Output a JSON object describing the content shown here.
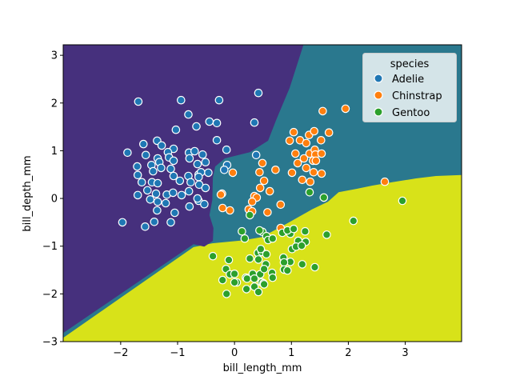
{
  "figure": {
    "background_color": "#ffffff",
    "frame_color": "#000000"
  },
  "chart_data": {
    "type": "scatter",
    "subtype": "scatter-with-decision-regions",
    "title": "",
    "xlabel": "bill_length_mm",
    "ylabel": "bill_depth_mm",
    "xlim": [
      -3.01,
      3.99
    ],
    "ylim": [
      -3.0,
      3.22
    ],
    "grid": false,
    "x_ticks": [
      {
        "value": -2,
        "label": "−2"
      },
      {
        "value": -1,
        "label": "−1"
      },
      {
        "value": 0,
        "label": "0"
      },
      {
        "value": 1,
        "label": "1"
      },
      {
        "value": 2,
        "label": "2"
      },
      {
        "value": 3,
        "label": "3"
      }
    ],
    "y_ticks": [
      {
        "value": 3,
        "label": "3"
      },
      {
        "value": 2,
        "label": "2"
      },
      {
        "value": 1,
        "label": "1"
      },
      {
        "value": 0,
        "label": "0"
      },
      {
        "value": -1,
        "label": "−1"
      },
      {
        "value": -2,
        "label": "−2"
      },
      {
        "value": -3,
        "label": "−3"
      }
    ],
    "legend": {
      "title": "species",
      "position": "upper right"
    },
    "marker": {
      "radius": 4.7,
      "edge_color": "#ffffff"
    },
    "series": [
      {
        "name": "Adelie",
        "color": "#1f77b4",
        "points": [
          [
            -1.69,
            2.03
          ],
          [
            -0.94,
            2.06
          ],
          [
            -0.27,
            2.06
          ],
          [
            -0.81,
            1.76
          ],
          [
            -0.67,
            1.51
          ],
          [
            -0.44,
            1.61
          ],
          [
            -0.31,
            1.58
          ],
          [
            -1.03,
            1.44
          ],
          [
            0.42,
            2.21
          ],
          [
            0.35,
            1.59
          ],
          [
            -1.6,
            1.14
          ],
          [
            -1.36,
            1.21
          ],
          [
            -1.28,
            1.11
          ],
          [
            -0.31,
            1.22
          ],
          [
            -1.88,
            0.96
          ],
          [
            -1.56,
            0.91
          ],
          [
            -1.07,
            1.04
          ],
          [
            -1.17,
            0.97
          ],
          [
            -1.15,
            0.86
          ],
          [
            -0.8,
            0.96
          ],
          [
            -0.7,
            0.99
          ],
          [
            -0.56,
            0.92
          ],
          [
            -0.65,
            0.72
          ],
          [
            -0.79,
            0.84
          ],
          [
            -1.07,
            0.79
          ],
          [
            -1.35,
            0.84
          ],
          [
            -1.32,
            0.76
          ],
          [
            -1.46,
            0.7
          ],
          [
            -1.71,
            0.67
          ],
          [
            -1.43,
            0.57
          ],
          [
            -1.29,
            0.64
          ],
          [
            -1.12,
            0.62
          ],
          [
            -1.07,
            0.47
          ],
          [
            -0.96,
            0.37
          ],
          [
            -0.81,
            0.47
          ],
          [
            -0.63,
            0.5
          ],
          [
            -0.46,
            0.54
          ],
          [
            -1.7,
            0.49
          ],
          [
            -0.14,
            1.02
          ],
          [
            -0.13,
            0.7
          ],
          [
            0.38,
            0.91
          ],
          [
            -1.63,
            0.34
          ],
          [
            -1.45,
            0.34
          ],
          [
            -1.35,
            0.32
          ],
          [
            -0.77,
            0.34
          ],
          [
            -0.62,
            0.29
          ],
          [
            -1.7,
            0.07
          ],
          [
            -1.53,
            0.17
          ],
          [
            -1.38,
            0.1
          ],
          [
            -1.19,
            0.08
          ],
          [
            -1.08,
            0.12
          ],
          [
            -0.93,
            0.07
          ],
          [
            -0.8,
            0.15
          ],
          [
            -1.48,
            -0.02
          ],
          [
            -1.35,
            -0.07
          ],
          [
            -1.21,
            -0.1
          ],
          [
            -0.79,
            -0.17
          ],
          [
            -0.63,
            -0.05
          ],
          [
            -0.53,
            -0.12
          ],
          [
            -0.65,
            0.0
          ],
          [
            -1.36,
            -0.25
          ],
          [
            -1.05,
            -0.3
          ],
          [
            -1.97,
            -0.5
          ],
          [
            -1.57,
            -0.59
          ],
          [
            -1.41,
            -0.49
          ],
          [
            -1.12,
            -0.5
          ],
          [
            -0.51,
            0.76
          ],
          [
            -0.59,
            0.55
          ],
          [
            -0.63,
            0.45
          ],
          [
            -0.18,
            0.6
          ],
          [
            -0.51,
            0.22
          ]
        ]
      },
      {
        "name": "Chinstrap",
        "color": "#ff7f0e",
        "points": [
          [
            1.55,
            1.83
          ],
          [
            1.95,
            1.88
          ],
          [
            1.04,
            1.39
          ],
          [
            1.31,
            1.33
          ],
          [
            1.4,
            1.41
          ],
          [
            1.66,
            1.38
          ],
          [
            1.15,
            1.22
          ],
          [
            1.52,
            1.22
          ],
          [
            0.97,
            1.21
          ],
          [
            1.26,
            1.16
          ],
          [
            1.07,
            0.94
          ],
          [
            1.22,
            0.84
          ],
          [
            1.32,
            0.94
          ],
          [
            1.41,
            1.02
          ],
          [
            1.42,
            0.92
          ],
          [
            1.53,
            0.94
          ],
          [
            1.38,
            0.79
          ],
          [
            1.43,
            0.79
          ],
          [
            1.11,
            0.74
          ],
          [
            1.26,
            0.64
          ],
          [
            0.72,
            0.6
          ],
          [
            1.01,
            0.54
          ],
          [
            1.39,
            0.55
          ],
          [
            1.53,
            0.52
          ],
          [
            1.19,
            0.39
          ],
          [
            1.33,
            0.35
          ],
          [
            2.64,
            0.35
          ],
          [
            -0.22,
            0.1
          ],
          [
            -0.21,
            -0.2
          ],
          [
            -0.08,
            -0.25
          ],
          [
            0.49,
            0.74
          ],
          [
            0.44,
            0.55
          ],
          [
            -0.03,
            0.54
          ],
          [
            0.52,
            0.37
          ],
          [
            0.45,
            0.22
          ],
          [
            0.62,
            0.15
          ],
          [
            0.35,
            0.05
          ],
          [
            0.39,
            0.02
          ],
          [
            0.31,
            -0.07
          ],
          [
            0.25,
            -0.23
          ],
          [
            0.31,
            -0.27
          ],
          [
            -0.24,
            0.08
          ],
          [
            0.58,
            -0.29
          ],
          [
            0.81,
            -0.13
          ],
          [
            0.81,
            -0.62
          ]
        ]
      },
      {
        "name": "Gentoo",
        "color": "#2ca02c",
        "points": [
          [
            1.32,
            0.13
          ],
          [
            1.57,
            0.02
          ],
          [
            0.27,
            -0.35
          ],
          [
            0.13,
            -0.69
          ],
          [
            0.49,
            -0.7
          ],
          [
            0.56,
            -0.79
          ],
          [
            0.18,
            -0.84
          ],
          [
            0.98,
            -0.74
          ],
          [
            -0.38,
            -1.21
          ],
          [
            -0.1,
            -1.29
          ],
          [
            -0.15,
            -1.48
          ],
          [
            -0.08,
            -1.59
          ],
          [
            -0.21,
            -1.71
          ],
          [
            0.04,
            -1.76
          ],
          [
            0.2,
            -1.66
          ],
          [
            0.27,
            -1.26
          ],
          [
            0.32,
            -1.58
          ],
          [
            0.41,
            -1.14
          ],
          [
            0.48,
            -1.12
          ],
          [
            0.45,
            -1.59
          ],
          [
            0.35,
            -1.85
          ],
          [
            -0.14,
            -2.0
          ],
          [
            0.48,
            -1.76
          ],
          [
            0.44,
            -0.67
          ],
          [
            0.59,
            -0.87
          ],
          [
            0.67,
            -0.84
          ],
          [
            0.84,
            -0.72
          ],
          [
            0.93,
            -0.67
          ],
          [
            1.04,
            -0.64
          ],
          [
            1.24,
            -0.69
          ],
          [
            1.62,
            -0.76
          ],
          [
            1.12,
            -0.89
          ],
          [
            1.25,
            -0.91
          ],
          [
            1.01,
            -1.06
          ],
          [
            1.08,
            -1.01
          ],
          [
            1.18,
            -0.99
          ],
          [
            0.46,
            -1.06
          ],
          [
            0.56,
            -1.17
          ],
          [
            0.42,
            -1.28
          ],
          [
            0.55,
            -1.38
          ],
          [
            0.86,
            -1.24
          ],
          [
            0.98,
            -1.33
          ],
          [
            0.87,
            -1.34
          ],
          [
            1.19,
            -1.38
          ],
          [
            1.41,
            -1.44
          ],
          [
            0.87,
            -1.49
          ],
          [
            0.93,
            -1.51
          ],
          [
            0.66,
            -1.56
          ],
          [
            0.67,
            -1.66
          ],
          [
            0.51,
            -1.78
          ],
          [
            0.42,
            -1.96
          ],
          [
            2.95,
            -0.05
          ],
          [
            2.09,
            -0.47
          ],
          [
            0.0,
            -1.58
          ],
          [
            0.0,
            -1.76
          ],
          [
            0.52,
            -1.48
          ],
          [
            0.22,
            -1.68
          ],
          [
            0.35,
            -1.68
          ],
          [
            0.52,
            -1.8
          ],
          [
            0.21,
            -1.9
          ]
        ]
      }
    ],
    "decision_regions": {
      "background_class": "Chinstrap",
      "background_color": "#2a788e",
      "polygons": [
        {
          "class": "Gentoo",
          "color": "#d8e219",
          "points": [
            [
              -3.01,
              -2.92
            ],
            [
              -0.72,
              -1.02
            ],
            [
              -0.39,
              -0.94
            ],
            [
              0.14,
              -0.88
            ],
            [
              0.48,
              -0.81
            ],
            [
              0.9,
              -0.54
            ],
            [
              1.36,
              -0.23
            ],
            [
              1.64,
              -0.07
            ],
            [
              1.83,
              0.13
            ],
            [
              2.14,
              0.2
            ],
            [
              2.42,
              0.27
            ],
            [
              2.77,
              0.34
            ],
            [
              3.19,
              0.42
            ],
            [
              3.54,
              0.47
            ],
            [
              3.99,
              0.49
            ],
            [
              3.99,
              -3.05
            ],
            [
              -3.01,
              -3.05
            ]
          ]
        },
        {
          "class": "Adelie",
          "color": "#46307d",
          "points": [
            [
              -3.01,
              3.25
            ],
            [
              1.22,
              3.25
            ],
            [
              0.97,
              2.32
            ],
            [
              0.73,
              1.64
            ],
            [
              0.59,
              1.21
            ],
            [
              0.27,
              0.97
            ],
            [
              -0.17,
              0.84
            ],
            [
              -0.34,
              0.67
            ],
            [
              -0.38,
              0.44
            ],
            [
              -0.39,
              -0.03
            ],
            [
              -0.44,
              -0.35
            ],
            [
              -0.37,
              -0.62
            ],
            [
              -0.38,
              -0.89
            ],
            [
              -0.53,
              -1.01
            ],
            [
              -0.72,
              -0.96
            ],
            [
              -3.01,
              -2.82
            ]
          ]
        }
      ]
    }
  }
}
